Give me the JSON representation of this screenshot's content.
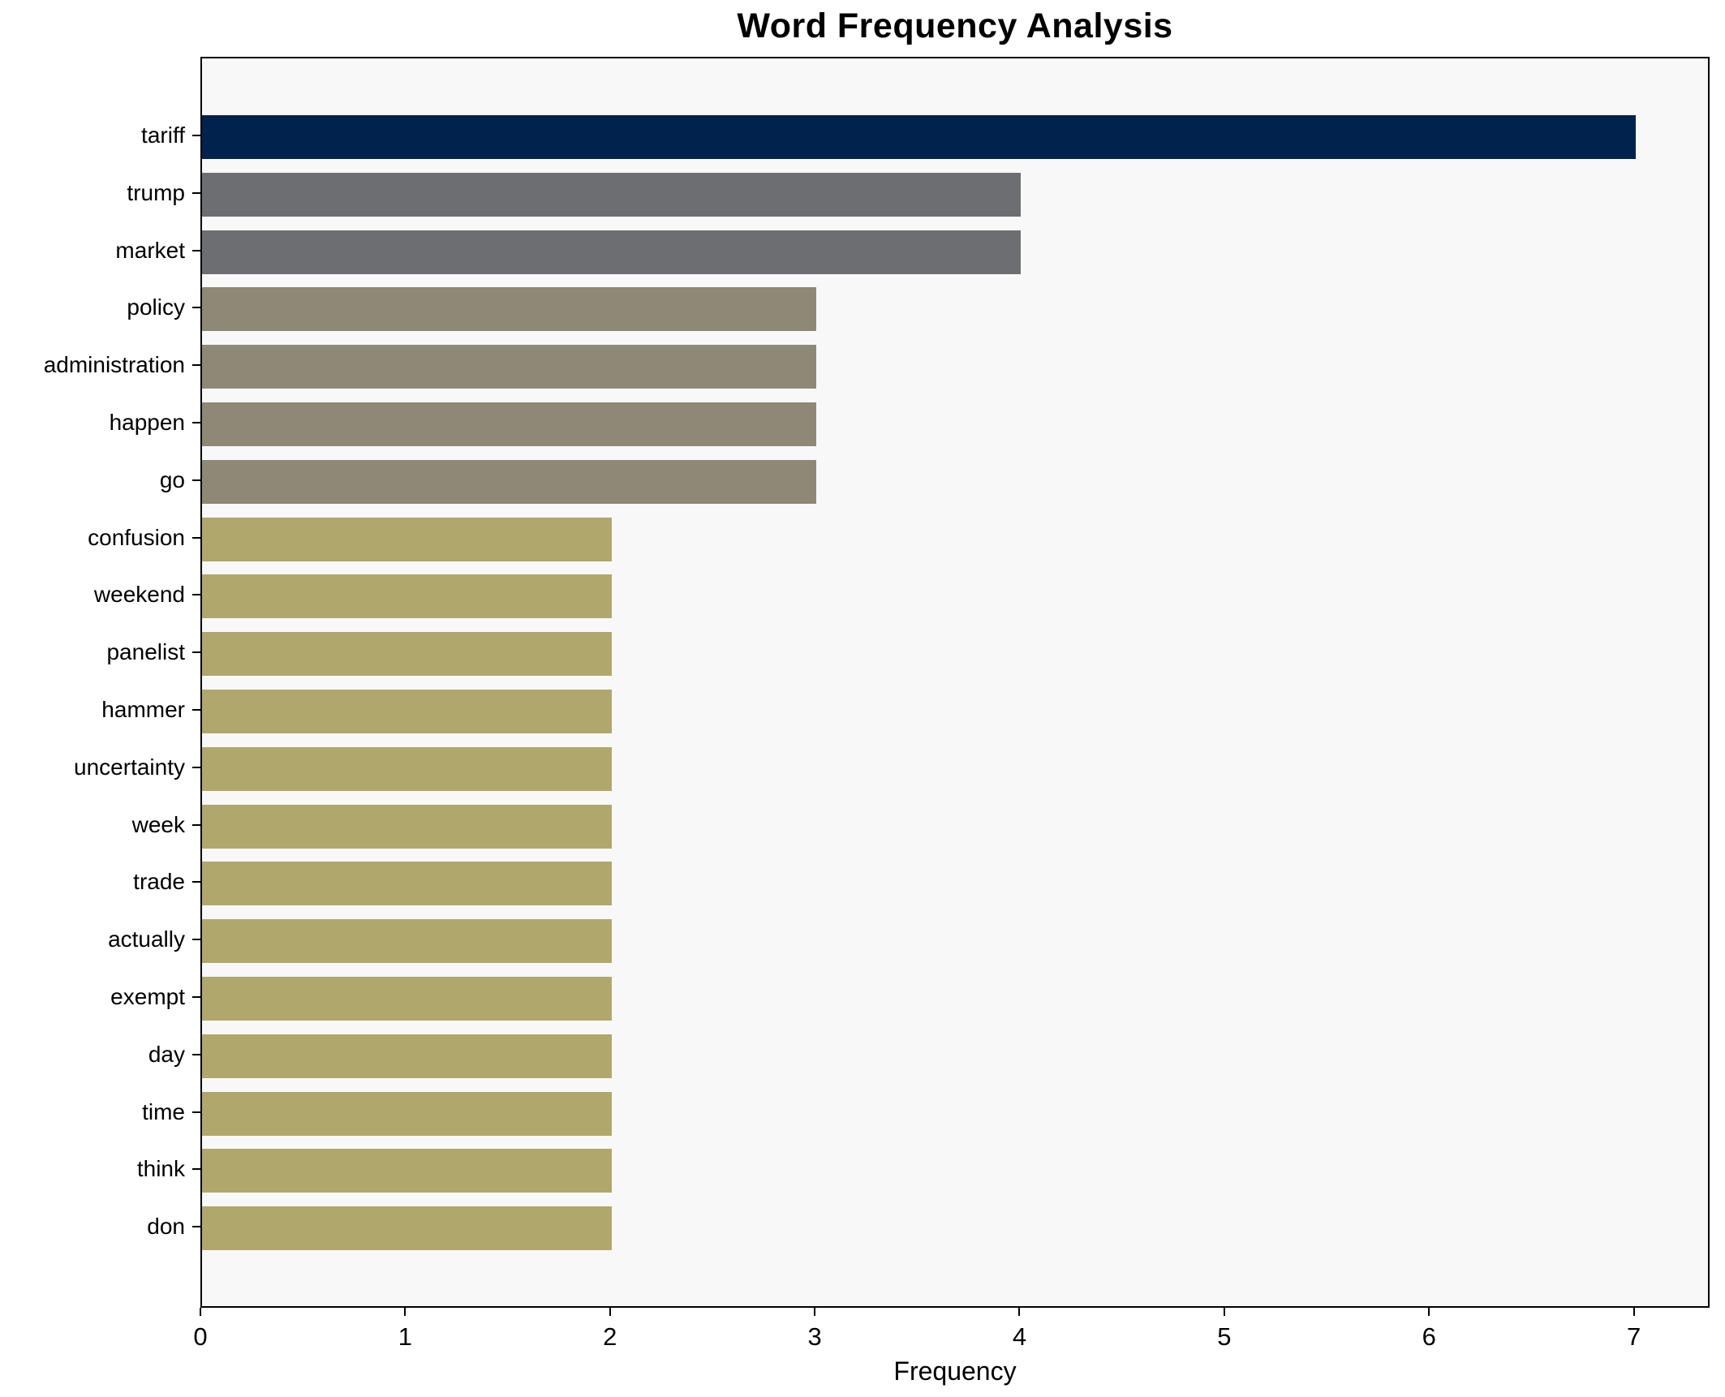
{
  "title": "Word Frequency Analysis",
  "chart_data": {
    "type": "bar",
    "orientation": "horizontal",
    "title": "Word Frequency Analysis",
    "xlabel": "Frequency",
    "ylabel": "",
    "categories": [
      "tariff",
      "trump",
      "market",
      "policy",
      "administration",
      "happen",
      "go",
      "confusion",
      "weekend",
      "panelist",
      "hammer",
      "uncertainty",
      "week",
      "trade",
      "actually",
      "exempt",
      "day",
      "time",
      "think",
      "don"
    ],
    "values": [
      7,
      4,
      4,
      3,
      3,
      3,
      3,
      2,
      2,
      2,
      2,
      2,
      2,
      2,
      2,
      2,
      2,
      2,
      2,
      2
    ],
    "bar_colors": [
      "#01224d",
      "#6c6e72",
      "#6c6e72",
      "#8e8876",
      "#8e8876",
      "#8e8876",
      "#8e8876",
      "#b0a76c",
      "#b0a76c",
      "#b0a76c",
      "#b0a76c",
      "#b0a76c",
      "#b0a76c",
      "#b0a76c",
      "#b0a76c",
      "#b0a76c",
      "#b0a76c",
      "#b0a76c",
      "#b0a76c",
      "#b0a76c"
    ],
    "xticks": [
      0,
      1,
      2,
      3,
      4,
      5,
      6,
      7
    ],
    "xlim": [
      0,
      7.37
    ],
    "grid": false,
    "legend": null,
    "plot_background": "#f8f8f9",
    "figure_background": "#ffffff",
    "colors_by_value": {
      "7": "#01224d",
      "4": "#6c6e72",
      "3": "#8e8876",
      "2": "#b0a76c"
    }
  }
}
